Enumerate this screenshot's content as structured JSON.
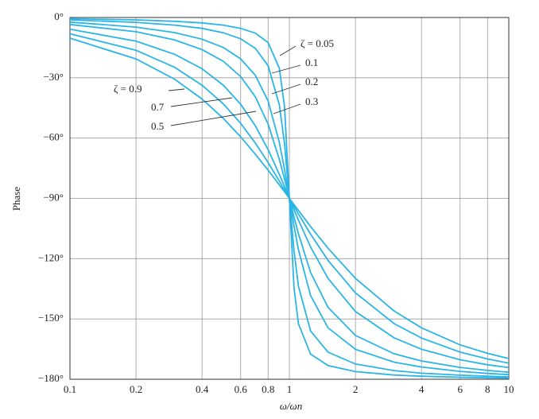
{
  "chart_data": {
    "type": "line",
    "x_label": "ω/ωn",
    "y_label": "Phase",
    "x": [
      0.1,
      0.2,
      0.3,
      0.4,
      0.5,
      0.6,
      0.7,
      0.8,
      0.9,
      0.95,
      1,
      1.05,
      1.1,
      1.25,
      1.5,
      2,
      3,
      4,
      6,
      8,
      10
    ],
    "log_x": true,
    "grid": true,
    "color": "#2bb5e6",
    "xlim": [
      0.1,
      10
    ],
    "xticks": [
      0.1,
      0.2,
      0.4,
      0.6,
      0.8,
      1,
      2,
      4,
      6,
      8,
      10
    ],
    "ylim": [
      -180,
      0
    ],
    "yticks": [
      {
        "value": 0,
        "label": "0°"
      },
      {
        "value": -30,
        "label": "−30°"
      },
      {
        "value": -60,
        "label": "−60°"
      },
      {
        "value": -90,
        "label": "−90°"
      },
      {
        "value": -120,
        "label": "−120°"
      },
      {
        "value": -150,
        "label": "−150°"
      },
      {
        "value": -180,
        "label": "−180°"
      }
    ],
    "series": [
      {
        "name": "ζ  = 0.05",
        "values": [
          -0.6,
          -1.2,
          -1.9,
          -2.7,
          -3.8,
          -5.4,
          -7.8,
          -12.5,
          -25.3,
          -44.3,
          -90,
          -134.3,
          -152.4,
          -167.5,
          -173.2,
          -176.2,
          -177.9,
          -178.5,
          -179.0,
          -179.3,
          -179.4
        ]
      },
      {
        "name": "0.1",
        "values": [
          -1.2,
          -2.4,
          -3.8,
          -5.4,
          -7.6,
          -10.6,
          -15.4,
          -24.0,
          -43.5,
          -62.8,
          -90,
          -116.0,
          -133.7,
          -156.0,
          -166.5,
          -172.4,
          -175.7,
          -177.0,
          -178.0,
          -178.5,
          -178.8
        ]
      },
      {
        "name": "0.2",
        "values": [
          -2.3,
          -4.8,
          -7.5,
          -10.8,
          -14.9,
          -20.6,
          -28.8,
          -41.6,
          -62.2,
          -75.6,
          -90,
          -103.7,
          -115.5,
          -138.4,
          -154.4,
          -165.1,
          -171.5,
          -173.9,
          -176.1,
          -177.1,
          -177.7
        ]
      },
      {
        "name": "0.3",
        "values": [
          -3.5,
          -7.1,
          -11.2,
          -16.0,
          -21.8,
          -29.4,
          -39.5,
          -53.1,
          -70.6,
          -80.3,
          -90,
          -99.2,
          -107.6,
          -126.9,
          -144.2,
          -158.2,
          -167.3,
          -170.9,
          -174.1,
          -175.6,
          -176.5
        ]
      },
      {
        "name": "0.5",
        "values": [
          -5.8,
          -11.8,
          -18.3,
          -25.5,
          -33.7,
          -43.2,
          -53.9,
          -65.8,
          -78.1,
          -84.1,
          -90,
          -95.6,
          -100.8,
          -114.2,
          -129.8,
          -146.3,
          -159.4,
          -165.1,
          -170.3,
          -172.8,
          -174.2
        ]
      },
      {
        "name": "0.7",
        "values": [
          -8.1,
          -16.3,
          -24.8,
          -33.7,
          -43.0,
          -52.7,
          -62.5,
          -72.2,
          -81.4,
          -85.8,
          -90,
          -94.0,
          -97.8,
          -107.8,
          -120.8,
          -137.0,
          -152.3,
          -159.5,
          -166.5,
          -169.9,
          -172.0
        ]
      },
      {
        "name": "ζ = 0.9",
        "values": [
          -10.3,
          -20.6,
          -30.7,
          -40.6,
          -50.2,
          -59.4,
          -68.0,
          -76.0,
          -83.3,
          -86.7,
          -90,
          -93.1,
          -96.0,
          -104.0,
          -114.8,
          -129.8,
          -146.0,
          -154.4,
          -162.9,
          -167.1,
          -169.7
        ]
      }
    ]
  }
}
